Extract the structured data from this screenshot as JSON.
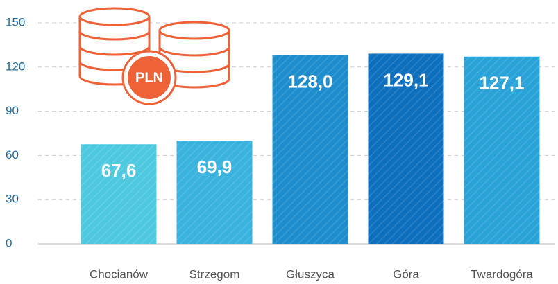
{
  "chart_data": {
    "type": "bar",
    "icon_label": "PLN",
    "categories": [
      "Chocianów",
      "Strzegom",
      "Głuszyca",
      "Góra",
      "Twardogóra"
    ],
    "values": [
      67.6,
      69.9,
      128.0,
      129.1,
      127.1
    ],
    "value_labels": [
      "67,6",
      "69,9",
      "128,0",
      "129,1",
      "127,1"
    ],
    "colors": [
      "#4fc9e0",
      "#3ab3de",
      "#1e8dcd",
      "#0e6fbd",
      "#2aa3d9"
    ],
    "ylim": [
      0,
      150
    ],
    "yticks": [
      0,
      30,
      60,
      90,
      120,
      150
    ],
    "grid": true
  }
}
